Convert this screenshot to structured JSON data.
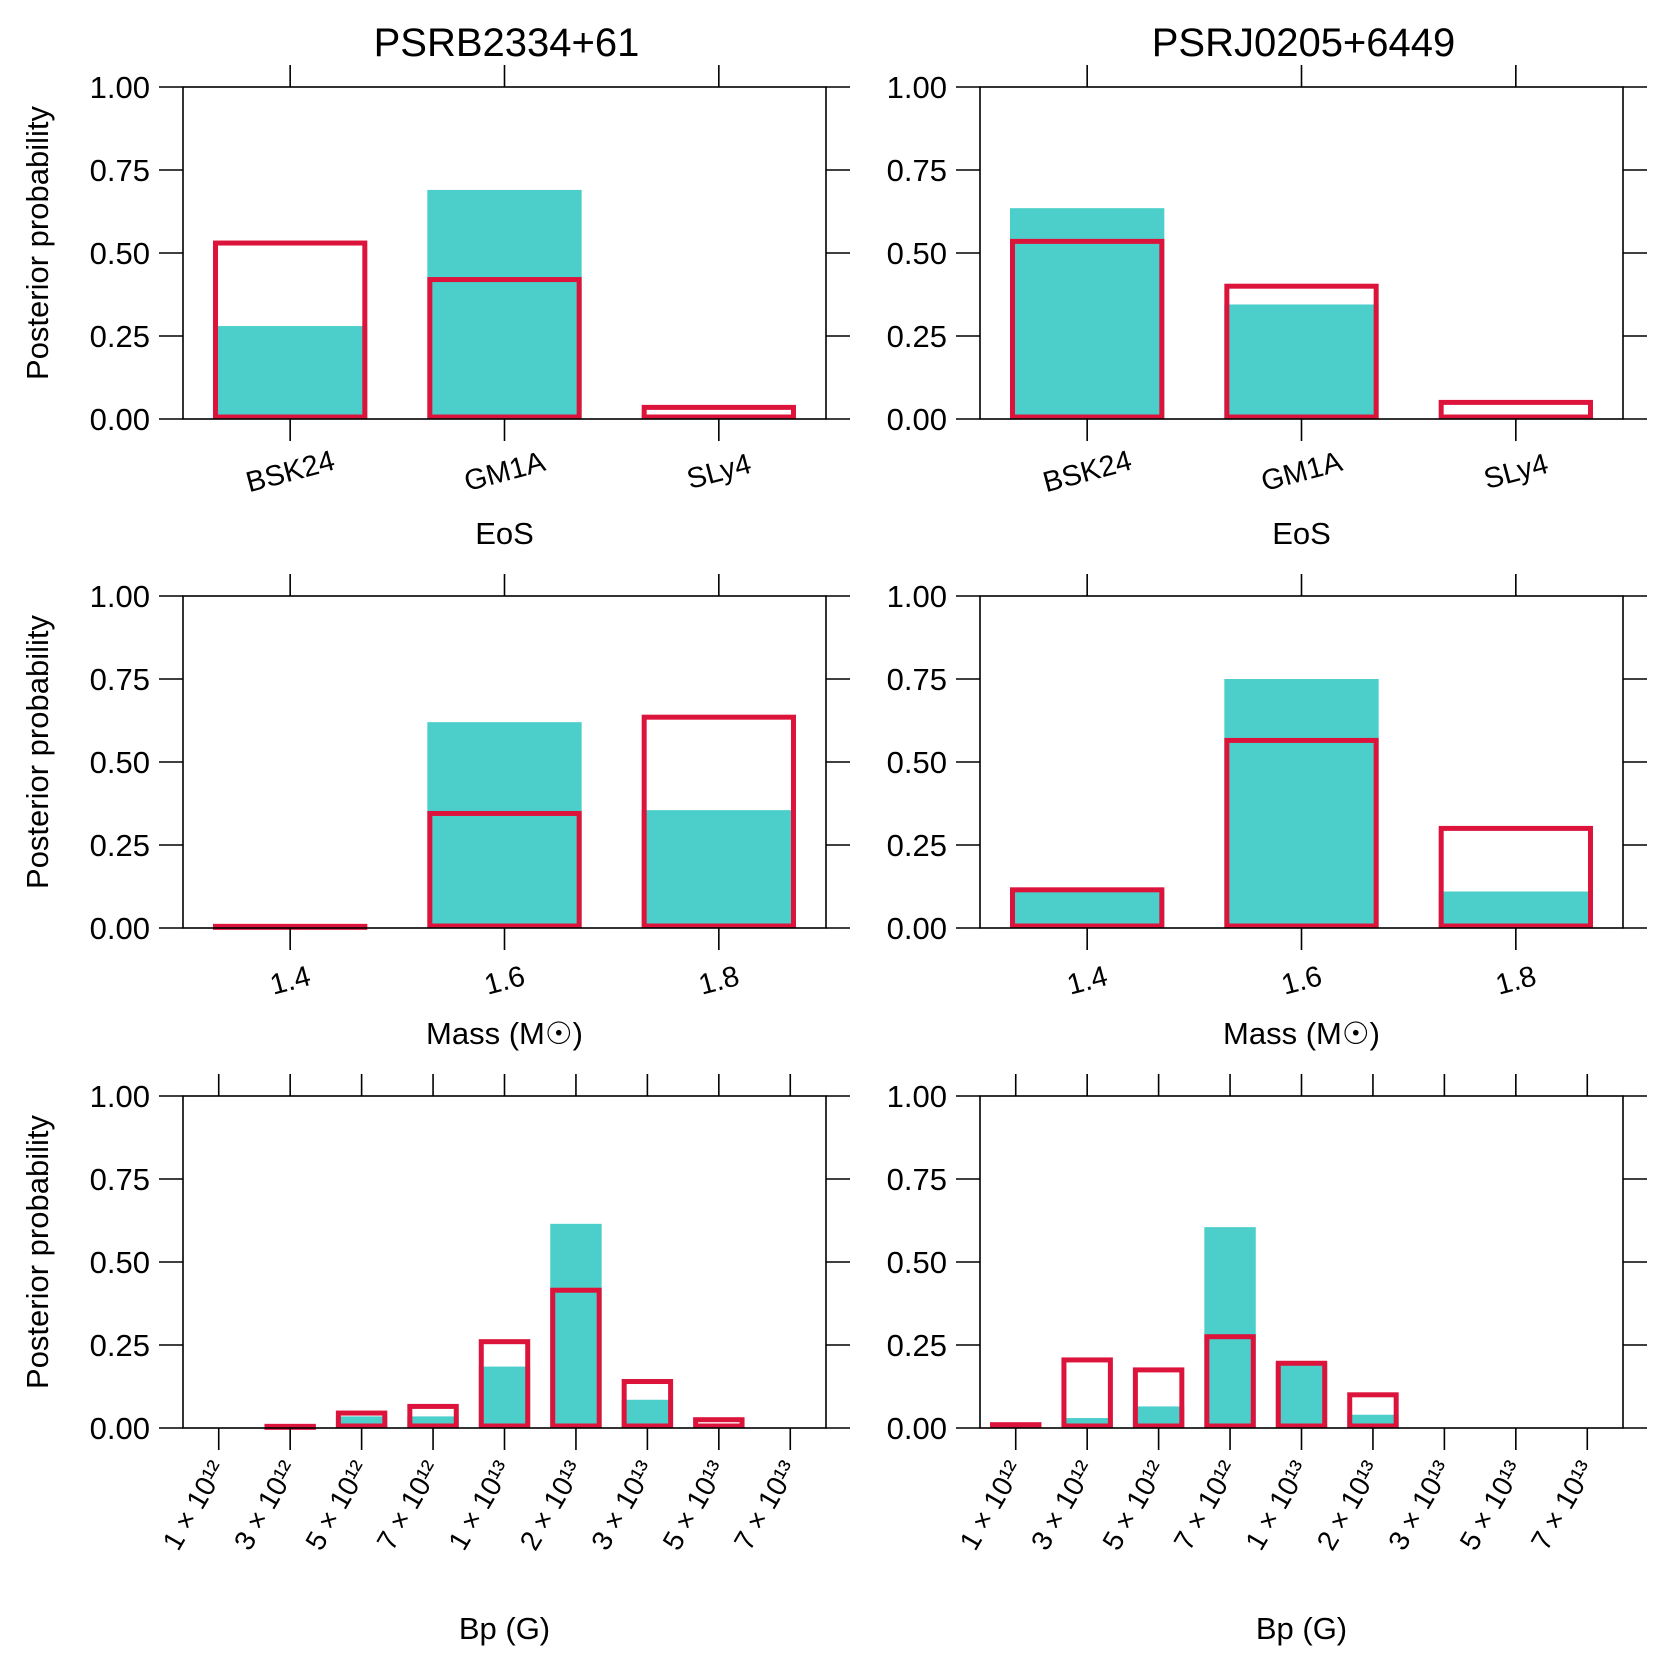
{
  "colors": {
    "filled": "#4ccfcb",
    "outline": "#dc143c",
    "axis": "#000000"
  },
  "chart_data": [
    {
      "type": "bar",
      "panel": "eos-left",
      "title": "PSRB2334+61",
      "xlabel": "EoS",
      "ylabel": "Posterior probability",
      "categories": [
        "BSK24",
        "GM1A",
        "SLy4"
      ],
      "ylim": [
        0,
        1
      ],
      "yticks": [
        "0.00",
        "0.25",
        "0.50",
        "0.75",
        "1.00"
      ],
      "series": [
        {
          "style": "filled",
          "values": [
            0.28,
            0.69,
            0.01
          ]
        },
        {
          "style": "outline",
          "values": [
            0.53,
            0.42,
            0.035
          ]
        }
      ]
    },
    {
      "type": "bar",
      "panel": "eos-right",
      "title": "PSRJ0205+6449",
      "xlabel": "EoS",
      "ylabel": "",
      "categories": [
        "BSK24",
        "GM1A",
        "SLy4"
      ],
      "ylim": [
        0,
        1
      ],
      "yticks": [
        "0.00",
        "0.25",
        "0.50",
        "0.75",
        "1.00"
      ],
      "series": [
        {
          "style": "filled",
          "values": [
            0.635,
            0.345,
            0.0
          ]
        },
        {
          "style": "outline",
          "values": [
            0.535,
            0.4,
            0.05
          ]
        }
      ]
    },
    {
      "type": "bar",
      "panel": "mass-left",
      "title": "",
      "xlabel": "Mass (M☉)",
      "ylabel": "Posterior probability",
      "categories": [
        "1.4",
        "1.6",
        "1.8"
      ],
      "ylim": [
        0,
        1
      ],
      "yticks": [
        "0.00",
        "0.25",
        "0.50",
        "0.75",
        "1.00"
      ],
      "series": [
        {
          "style": "filled",
          "values": [
            0.0,
            0.62,
            0.355
          ]
        },
        {
          "style": "outline",
          "values": [
            0.005,
            0.345,
            0.635
          ]
        }
      ]
    },
    {
      "type": "bar",
      "panel": "mass-right",
      "title": "",
      "xlabel": "Mass (M☉)",
      "ylabel": "",
      "categories": [
        "1.4",
        "1.6",
        "1.8"
      ],
      "ylim": [
        0,
        1
      ],
      "yticks": [
        "0.00",
        "0.25",
        "0.50",
        "0.75",
        "1.00"
      ],
      "series": [
        {
          "style": "filled",
          "values": [
            0.115,
            0.75,
            0.11
          ]
        },
        {
          "style": "outline",
          "values": [
            0.115,
            0.565,
            0.3
          ]
        }
      ]
    },
    {
      "type": "bar",
      "panel": "bp-left",
      "title": "",
      "xlabel": "Bp (G)",
      "ylabel": "Posterior probability",
      "categories": [
        "1 × 10¹²",
        "3 × 10¹²",
        "5 × 10¹²",
        "7 × 10¹²",
        "1 × 10¹³",
        "2 × 10¹³",
        "3 × 10¹³",
        "5 × 10¹³",
        "7 × 10¹³"
      ],
      "ylim": [
        0,
        1
      ],
      "yticks": [
        "0.00",
        "0.25",
        "0.50",
        "0.75",
        "1.00"
      ],
      "series": [
        {
          "style": "filled",
          "values": [
            0.0,
            0.0,
            0.035,
            0.035,
            0.185,
            0.615,
            0.085,
            0.0,
            0.0
          ]
        },
        {
          "style": "outline",
          "values": [
            0.0,
            0.005,
            0.045,
            0.065,
            0.26,
            0.415,
            0.14,
            0.025,
            0.0
          ]
        }
      ]
    },
    {
      "type": "bar",
      "panel": "bp-right",
      "title": "",
      "xlabel": "Bp (G)",
      "ylabel": "",
      "categories": [
        "1 × 10¹²",
        "3 × 10¹²",
        "5 × 10¹²",
        "7 × 10¹²",
        "1 × 10¹³",
        "2 × 10¹³",
        "3 × 10¹³",
        "5 × 10¹³",
        "7 × 10¹³"
      ],
      "ylim": [
        0,
        1
      ],
      "yticks": [
        "0.00",
        "0.25",
        "0.50",
        "0.75",
        "1.00"
      ],
      "series": [
        {
          "style": "filled",
          "values": [
            0.005,
            0.03,
            0.065,
            0.605,
            0.195,
            0.04,
            0.0,
            0.0,
            0.0
          ]
        },
        {
          "style": "outline",
          "values": [
            0.01,
            0.205,
            0.175,
            0.275,
            0.195,
            0.1,
            0.0,
            0.0,
            0.0
          ]
        }
      ]
    }
  ]
}
